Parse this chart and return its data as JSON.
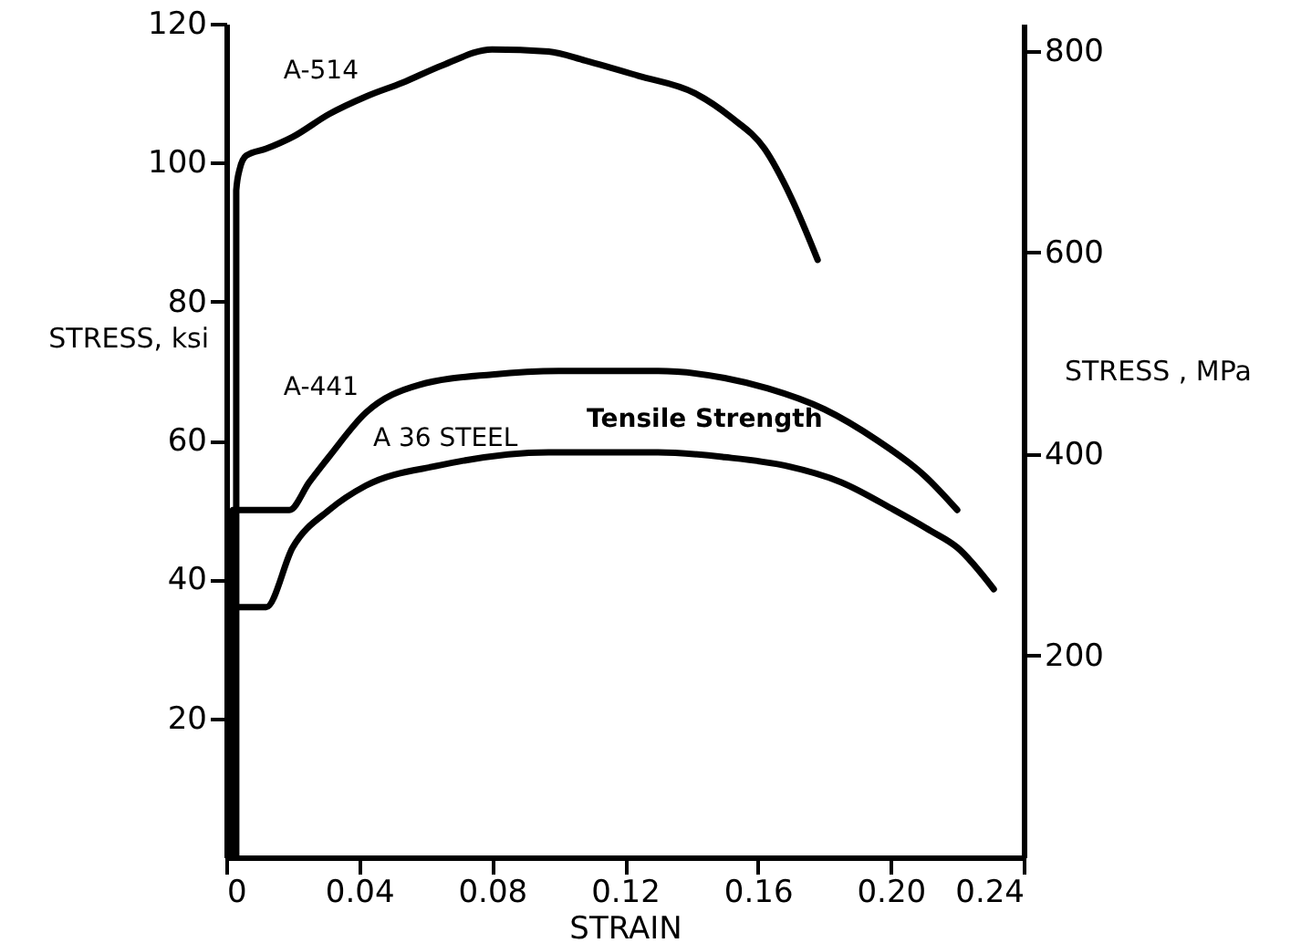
{
  "chart_data": {
    "type": "line",
    "xlabel": "STRAIN",
    "ylabel": "STRESS, ksi",
    "y2label": "STRESS , MPa",
    "xlim": [
      0,
      0.24
    ],
    "xticks": [
      {
        "value": 0,
        "label": "0"
      },
      0.04,
      0.08,
      0.12,
      0.16,
      {
        "value": 0.2,
        "label": "0.20"
      },
      0.24
    ],
    "ylim": [
      0,
      120
    ],
    "yticks": [
      20,
      40,
      60,
      80,
      100,
      120
    ],
    "y2lim": [
      0,
      827
    ],
    "y2ticks": [
      200,
      400,
      600,
      800
    ],
    "grid": false,
    "marker": "none",
    "line_style": "solid",
    "annotations": [
      "Tensile Strength"
    ],
    "series": [
      {
        "name": "A-514",
        "color": "#000000",
        "x": [
          0.003,
          0.003,
          0.004,
          0.006,
          0.012,
          0.02,
          0.031,
          0.042,
          0.053,
          0.065,
          0.08,
          0.097,
          0.108,
          0.124,
          0.141,
          0.152,
          0.162,
          0.17,
          0.178
        ],
        "values": [
          0,
          96,
          99,
          101,
          102,
          103.7,
          107,
          109.5,
          111.5,
          114,
          116.3,
          116,
          114.7,
          112.5,
          110,
          106.5,
          102,
          95,
          86
        ]
      },
      {
        "name": "A-441",
        "color": "#000000",
        "x": [
          0.002,
          0.002,
          0.01,
          0.019,
          0.025,
          0.031,
          0.042,
          0.058,
          0.08,
          0.1,
          0.13,
          0.15,
          0.163,
          0.18,
          0.196,
          0.21,
          0.22
        ],
        "values": [
          0,
          50,
          50,
          50,
          54,
          57.7,
          64,
          68,
          69.5,
          70,
          70,
          69,
          67.5,
          64.5,
          60,
          55,
          50
        ]
      },
      {
        "name": "A 36 STEEL",
        "color": "#000000",
        "x": [
          0.002,
          0.002,
          0.008,
          0.012,
          0.02,
          0.031,
          0.042,
          0.064,
          0.097,
          0.13,
          0.15,
          0.168,
          0.185,
          0.201,
          0.212,
          0.22,
          0.231
        ],
        "values": [
          0,
          36,
          36,
          36,
          44.6,
          50,
          53.5,
          56.4,
          58.3,
          58.3,
          57.6,
          56.4,
          54,
          50,
          47,
          44.6,
          38.6
        ]
      }
    ]
  }
}
